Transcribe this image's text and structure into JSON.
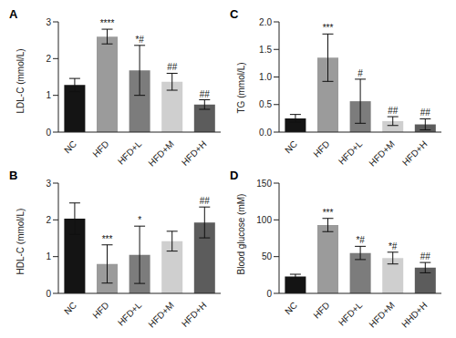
{
  "chart_data": [
    {
      "type": "bar",
      "title": "A",
      "y_label": "LDL-C (mmol/L)",
      "categories": [
        "NC",
        "HFD",
        "HFD+L",
        "HFD+M",
        "HFD+H"
      ],
      "values": [
        1.28,
        2.6,
        1.68,
        1.37,
        0.75
      ],
      "errors": [
        0.18,
        0.2,
        0.68,
        0.23,
        0.13
      ],
      "annotations": [
        null,
        "****",
        "*#",
        "##",
        "##"
      ],
      "colors": [
        "#141414",
        "#9b9b9b",
        "#7c7c7c",
        "#cfcfcf",
        "#5c5c5c"
      ],
      "ylim": [
        0,
        3
      ],
      "yticks": [
        0,
        1,
        2,
        3
      ]
    },
    {
      "type": "bar",
      "title": "C",
      "y_label": "TG (mmol/L)",
      "categories": [
        "NC",
        "HFD",
        "HFD+L",
        "HFD+M",
        "HFD+H"
      ],
      "values": [
        0.25,
        1.35,
        0.56,
        0.2,
        0.14
      ],
      "errors": [
        0.07,
        0.43,
        0.4,
        0.08,
        0.1
      ],
      "annotations": [
        null,
        "***",
        "#",
        "##",
        "##"
      ],
      "colors": [
        "#141414",
        "#9b9b9b",
        "#7c7c7c",
        "#cfcfcf",
        "#5c5c5c"
      ],
      "ylim": [
        0,
        2
      ],
      "yticks": [
        {
          "value": 0,
          "label": "0.0"
        },
        0.5,
        {
          "value": 1,
          "label": "1.0"
        },
        1.5,
        {
          "value": 2,
          "label": "2.0"
        }
      ]
    },
    {
      "type": "bar",
      "title": "B",
      "y_label": "HDL-C (mmol/L)",
      "categories": [
        "NC",
        "HFD",
        "HFD+L",
        "HFD+M",
        "HFD+H"
      ],
      "values": [
        2.03,
        0.8,
        1.05,
        1.42,
        1.93
      ],
      "errors": [
        0.43,
        0.52,
        0.78,
        0.27,
        0.42
      ],
      "annotations": [
        null,
        "***",
        "*",
        null,
        "##"
      ],
      "colors": [
        "#141414",
        "#9b9b9b",
        "#7c7c7c",
        "#cfcfcf",
        "#5c5c5c"
      ],
      "ylim": [
        0,
        3
      ],
      "yticks": [
        0,
        1,
        2,
        3
      ]
    },
    {
      "type": "bar",
      "title": "D",
      "y_label": "Blood glucose (mM)",
      "categories": [
        "NC",
        "HFD",
        "HFD+L",
        "HFD+M",
        "HHD+H"
      ],
      "values": [
        23,
        93,
        55,
        48,
        35
      ],
      "errors": [
        3,
        9,
        9,
        8,
        7
      ],
      "annotations": [
        null,
        "***",
        "*#",
        "*#",
        "##"
      ],
      "colors": [
        "#141414",
        "#9b9b9b",
        "#7c7c7c",
        "#cfcfcf",
        "#5c5c5c"
      ],
      "ylim": [
        0,
        150
      ],
      "yticks": [
        0,
        50,
        100,
        150
      ]
    }
  ]
}
